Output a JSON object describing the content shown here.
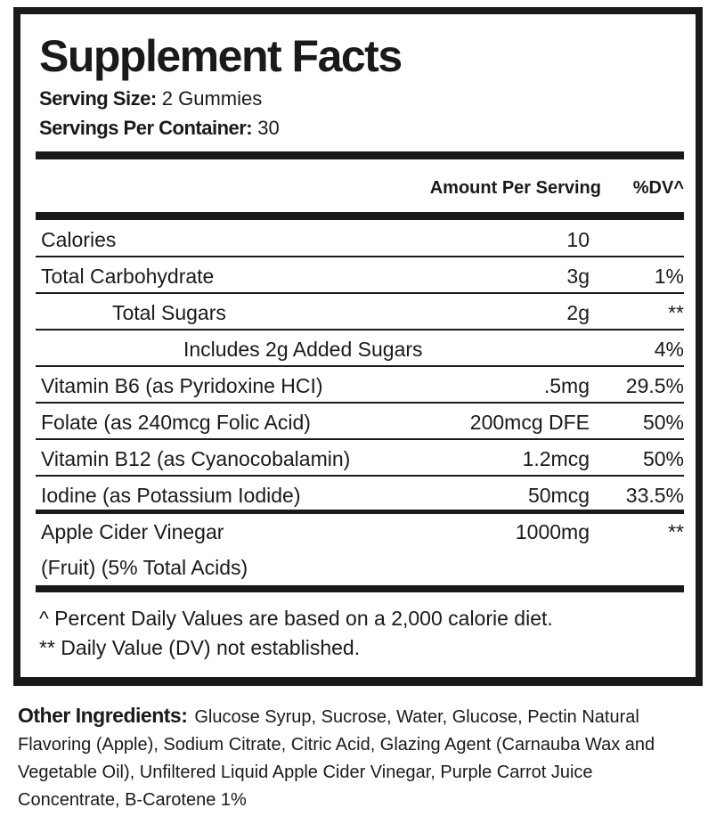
{
  "title": "Supplement Facts",
  "serving_size": {
    "label": "Serving Size:",
    "value": "2 Gummies"
  },
  "servings_per_container": {
    "label": "Servings Per Container:",
    "value": "30"
  },
  "columns": {
    "amount": "Amount Per Serving",
    "dv": "%DV^"
  },
  "rows": [
    {
      "name": "Calories",
      "amount": "10",
      "dv": ""
    },
    {
      "name": "Total Carbohydrate",
      "amount": "3g",
      "dv": "1%"
    },
    {
      "name": "Total Sugars",
      "amount": "2g",
      "dv": "**"
    },
    {
      "name": "Includes 2g Added Sugars",
      "amount": "",
      "dv": "4%"
    },
    {
      "name": "Vitamin B6 (as Pyridoxine HCI)",
      "amount": ".5mg",
      "dv": "29.5%"
    },
    {
      "name": "Folate (as 240mcg Folic Acid)",
      "amount": "200mcg DFE",
      "dv": "50%"
    },
    {
      "name": "Vitamin B12 (as Cyanocobalamin)",
      "amount": "1.2mcg",
      "dv": "50%"
    },
    {
      "name": "Iodine (as Potassium Iodide)",
      "amount": "50mcg",
      "dv": "33.5%"
    },
    {
      "name": "Apple Cider Vinegar",
      "name_line2": "(Fruit) (5% Total Acids)",
      "amount": "1000mg",
      "dv": "**"
    }
  ],
  "footnotes": [
    "^ Percent Daily Values are based on a 2,000 calorie diet.",
    "** Daily Value (DV) not established."
  ],
  "other_ingredients": {
    "label": "Other Ingredients:",
    "text": "Glucose Syrup, Sucrose, Water, Glucose, Pectin Natural Flavoring (Apple), Sodium Citrate, Citric Acid, Glazing Agent (Carnauba Wax and Vegetable Oil), Unfiltered Liquid Apple Cider Vinegar, Purple Carrot Juice Concentrate, B-Carotene 1%"
  }
}
